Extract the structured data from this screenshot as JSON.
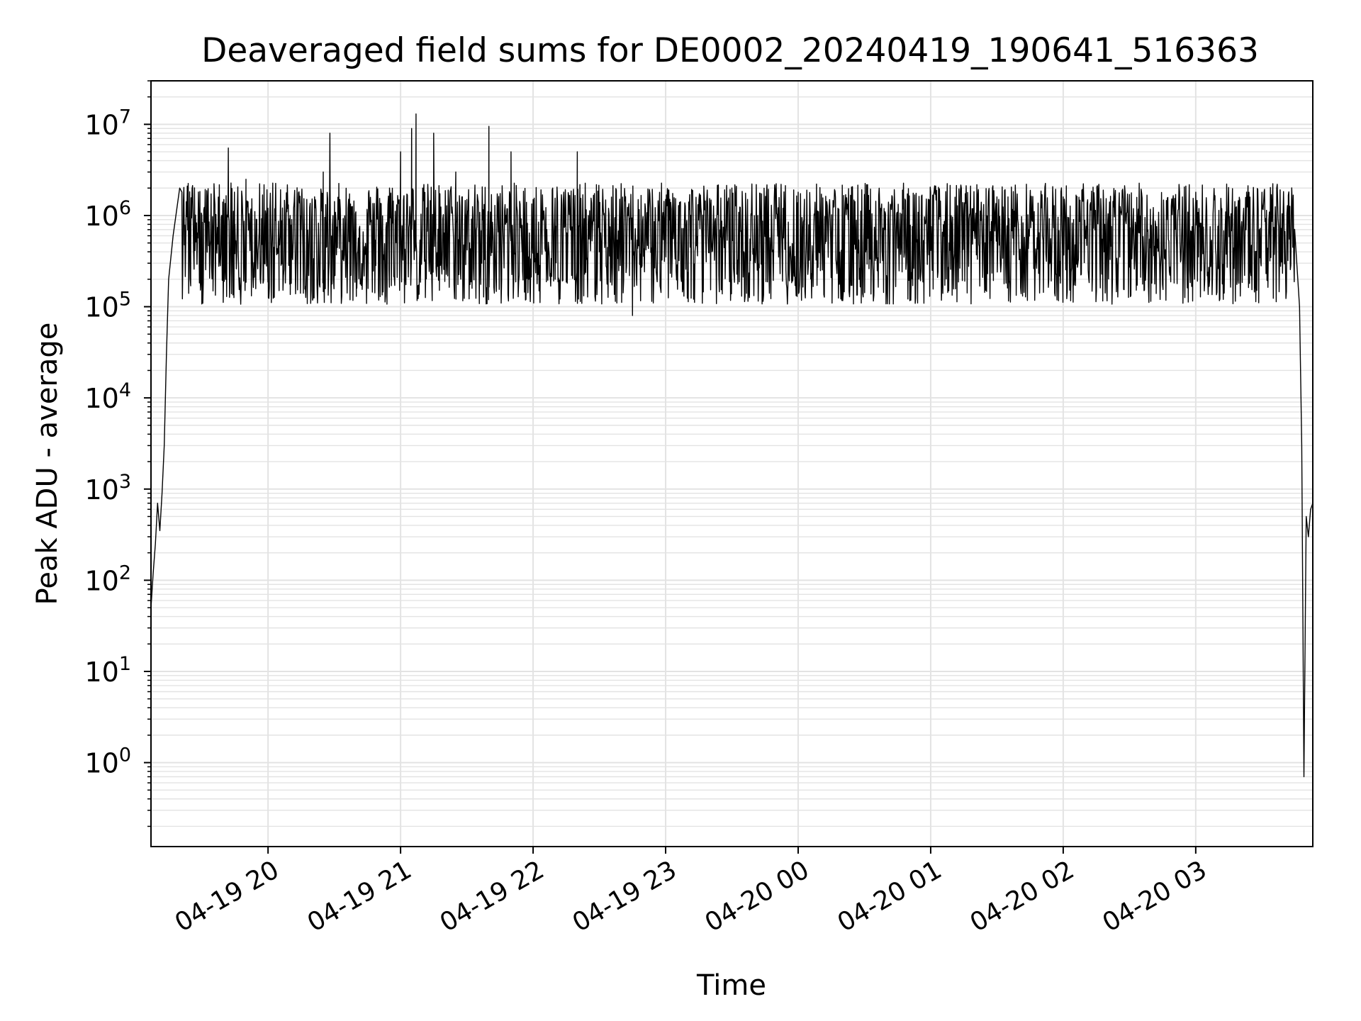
{
  "chart_data": {
    "type": "line",
    "title": "Deaveraged field sums for DE0002_20240419_190641_516363",
    "xlabel": "Time",
    "ylabel": "Peak ADU - average",
    "yscale": "log",
    "ylim": [
      0.12,
      30000000
    ],
    "xlim": [
      "2024-04-19 19:07",
      "2024-04-20 03:53"
    ],
    "grid": true,
    "line_color": "#000000",
    "grid_color": "#e3e3e3",
    "x_ticks": [
      {
        "label": "04-19 20",
        "time": "2024-04-19 20:00"
      },
      {
        "label": "04-19 21",
        "time": "2024-04-19 21:00"
      },
      {
        "label": "04-19 22",
        "time": "2024-04-19 22:00"
      },
      {
        "label": "04-19 23",
        "time": "2024-04-19 23:00"
      },
      {
        "label": "04-20 00",
        "time": "2024-04-20 00:00"
      },
      {
        "label": "04-20 01",
        "time": "2024-04-20 01:00"
      },
      {
        "label": "04-20 02",
        "time": "2024-04-20 02:00"
      },
      {
        "label": "04-20 03",
        "time": "2024-04-20 03:00"
      }
    ],
    "y_ticks": [
      {
        "base": "10",
        "exp": "0",
        "value": 1
      },
      {
        "base": "10",
        "exp": "1",
        "value": 10
      },
      {
        "base": "10",
        "exp": "2",
        "value": 100
      },
      {
        "base": "10",
        "exp": "3",
        "value": 1000
      },
      {
        "base": "10",
        "exp": "4",
        "value": 10000
      },
      {
        "base": "10",
        "exp": "5",
        "value": 100000
      },
      {
        "base": "10",
        "exp": "6",
        "value": 1000000
      },
      {
        "base": "10",
        "exp": "7",
        "value": 10000000
      }
    ],
    "series": [
      {
        "points": [
          [
            "2024-04-19 19:07",
            50
          ],
          [
            "2024-04-19 19:08",
            120
          ],
          [
            "2024-04-19 19:09",
            250
          ],
          [
            "2024-04-19 19:10",
            700
          ],
          [
            "2024-04-19 19:11",
            350
          ],
          [
            "2024-04-19 19:12",
            900
          ],
          [
            "2024-04-19 19:13",
            3000
          ],
          [
            "2024-04-19 19:14",
            30000
          ],
          [
            "2024-04-19 19:15",
            200000
          ],
          [
            "2024-04-19 19:17",
            600000
          ],
          [
            "2024-04-19 19:20",
            2000000
          ],
          [
            "2024-04-19 19:25",
            500000
          ],
          [
            "2024-04-19 19:30",
            1000000
          ],
          [
            "2024-04-19 19:35",
            700000
          ],
          [
            "2024-04-19 19:40",
            1500000
          ],
          [
            "2024-04-19 19:42",
            5500000
          ],
          [
            "2024-04-19 19:45",
            800000
          ],
          [
            "2024-04-19 19:50",
            2500000
          ],
          [
            "2024-04-19 19:55",
            400000
          ],
          [
            "2024-04-19 20:00",
            1200000
          ],
          [
            "2024-04-19 20:05",
            150000
          ],
          [
            "2024-04-19 20:10",
            1000000
          ],
          [
            "2024-04-19 20:15",
            700000
          ],
          [
            "2024-04-19 20:20",
            1300000
          ],
          [
            "2024-04-19 20:25",
            3000000
          ],
          [
            "2024-04-19 20:28",
            8000000
          ],
          [
            "2024-04-19 20:32",
            900000
          ],
          [
            "2024-04-19 20:40",
            300000
          ],
          [
            "2024-04-19 20:45",
            1000000
          ],
          [
            "2024-04-19 20:50",
            150000
          ],
          [
            "2024-04-19 20:55",
            2000000
          ],
          [
            "2024-04-19 21:00",
            5000000
          ],
          [
            "2024-04-19 21:05",
            9000000
          ],
          [
            "2024-04-19 21:07",
            13000000
          ],
          [
            "2024-04-19 21:10",
            2000000
          ],
          [
            "2024-04-19 21:15",
            8000000
          ],
          [
            "2024-04-19 21:20",
            600000
          ],
          [
            "2024-04-19 21:25",
            3000000
          ],
          [
            "2024-04-19 21:30",
            1500000
          ],
          [
            "2024-04-19 21:40",
            9500000
          ],
          [
            "2024-04-19 21:45",
            800000
          ],
          [
            "2024-04-19 21:50",
            5000000
          ],
          [
            "2024-04-19 21:55",
            400000
          ],
          [
            "2024-04-19 22:00",
            1500000
          ],
          [
            "2024-04-19 22:10",
            200000
          ],
          [
            "2024-04-19 22:20",
            5000000
          ],
          [
            "2024-04-19 22:25",
            1000000
          ],
          [
            "2024-04-19 22:30",
            400000
          ],
          [
            "2024-04-19 22:40",
            1200000
          ],
          [
            "2024-04-19 22:45",
            80000
          ],
          [
            "2024-04-19 23:00",
            1500000
          ],
          [
            "2024-04-19 23:30",
            2000000
          ],
          [
            "2024-04-20 00:00",
            1800000
          ],
          [
            "2024-04-20 00:30",
            1700000
          ],
          [
            "2024-04-20 01:00",
            1800000
          ],
          [
            "2024-04-20 01:30",
            1600000
          ],
          [
            "2024-04-20 02:00",
            1600000
          ],
          [
            "2024-04-20 02:30",
            1700000
          ],
          [
            "2024-04-20 03:00",
            1800000
          ],
          [
            "2024-04-20 03:30",
            1800000
          ],
          [
            "2024-04-20 03:45",
            1200000
          ],
          [
            "2024-04-20 03:47",
            100000
          ],
          [
            "2024-04-20 03:48",
            3000
          ],
          [
            "2024-04-20 03:49",
            0.7
          ],
          [
            "2024-04-20 03:50",
            500
          ],
          [
            "2024-04-20 03:51",
            300
          ],
          [
            "2024-04-20 03:52",
            600
          ],
          [
            "2024-04-20 03:53",
            700
          ]
        ],
        "envelope": {
          "start": "2024-04-19 19:07",
          "end": "2024-04-20 03:45",
          "upper_median": 1000000,
          "lower_median": 300000,
          "typical_min": 100000,
          "typical_max": 2000000
        }
      }
    ]
  }
}
